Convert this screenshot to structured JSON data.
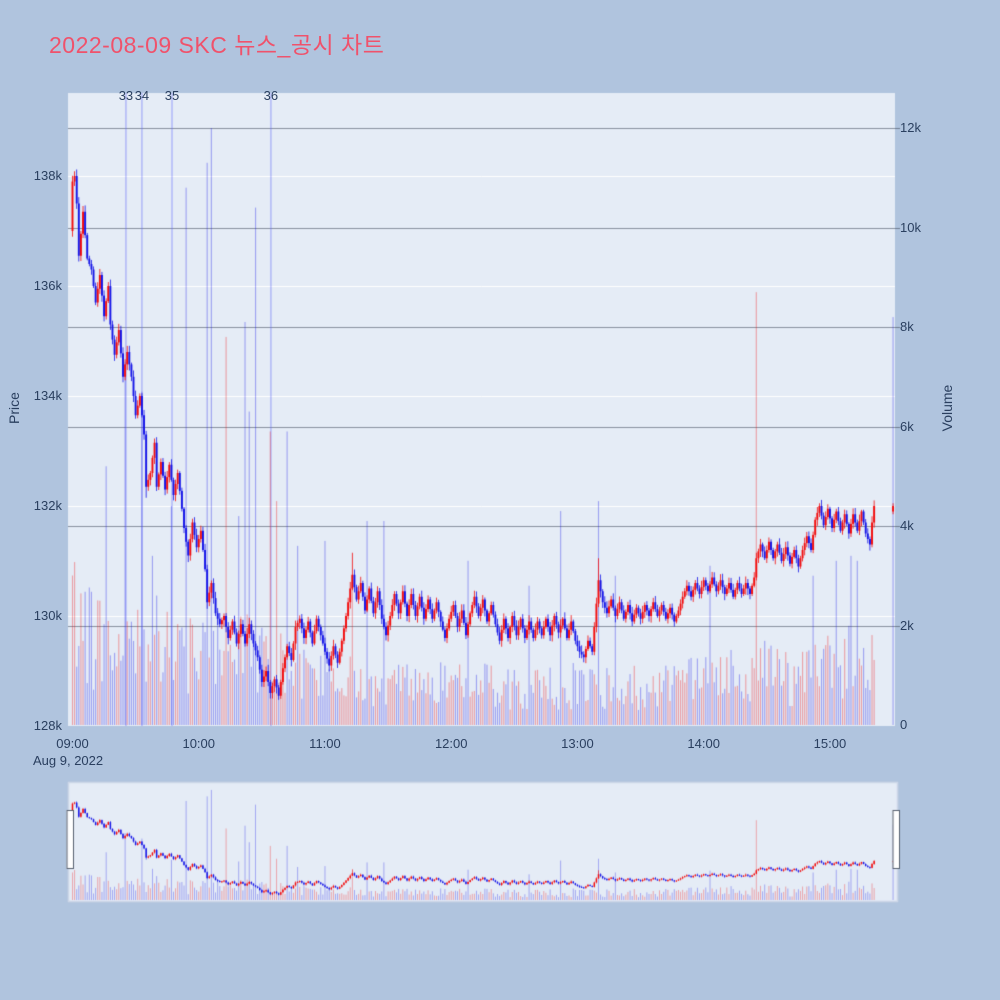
{
  "chart_data": {
    "type": "candlestick_with_volume",
    "title": "2022-08-09 SKC 뉴스_공시 차트",
    "x_axis": {
      "tick_labels": [
        "09:00",
        "10:00",
        "11:00",
        "12:00",
        "13:00",
        "14:00",
        "15:00"
      ],
      "date_label": "Aug 9, 2022",
      "session_start": "09:00",
      "session_end": "15:30"
    },
    "price_axis": {
      "title": "Price",
      "tick_labels": [
        "138k",
        "136k",
        "134k",
        "132k",
        "130k",
        "128k"
      ],
      "tick_values_k": [
        138,
        136,
        134,
        132,
        130,
        128
      ],
      "range_k": [
        128,
        139.5
      ],
      "gridline_values_k": [
        130,
        132,
        134,
        136,
        138
      ]
    },
    "volume_axis": {
      "title": "Volume",
      "tick_labels": [
        "12k",
        "10k",
        "8k",
        "6k",
        "4k",
        "2k",
        "0"
      ],
      "tick_values_k": [
        12,
        10,
        8,
        6,
        4,
        2,
        0
      ],
      "range_k": [
        0,
        12.7
      ],
      "gridline_values_k": [
        2,
        4,
        6,
        8,
        10,
        12
      ]
    },
    "annotations": [
      {
        "label": "33",
        "minute": 25.4
      },
      {
        "label": "34",
        "minute": 33.0
      },
      {
        "label": "35",
        "minute": 47.3
      },
      {
        "label": "36",
        "minute": 94.3
      }
    ],
    "open_k": 137.0,
    "price_keyframes": [
      [
        0,
        137.9
      ],
      [
        1,
        138.0
      ],
      [
        2,
        137.5
      ],
      [
        3,
        136.55
      ],
      [
        5,
        137.35
      ],
      [
        7,
        136.5
      ],
      [
        9,
        136.3
      ],
      [
        11,
        135.7
      ],
      [
        13,
        136.2
      ],
      [
        15,
        135.45
      ],
      [
        17,
        136.0
      ],
      [
        18,
        135.3
      ],
      [
        20,
        134.75
      ],
      [
        22,
        135.2
      ],
      [
        24,
        134.35
      ],
      [
        26,
        134.8
      ],
      [
        28,
        134.35
      ],
      [
        30,
        133.65
      ],
      [
        32,
        134.0
      ],
      [
        34,
        133.3
      ],
      [
        35,
        132.35
      ],
      [
        37,
        132.6
      ],
      [
        39,
        133.15
      ],
      [
        40,
        132.35
      ],
      [
        42,
        132.8
      ],
      [
        44,
        132.3
      ],
      [
        46,
        132.75
      ],
      [
        48,
        132.2
      ],
      [
        50,
        132.6
      ],
      [
        52,
        131.95
      ],
      [
        53,
        131.6
      ],
      [
        55,
        131.1
      ],
      [
        57,
        131.7
      ],
      [
        59,
        131.25
      ],
      [
        61,
        131.55
      ],
      [
        63,
        130.85
      ],
      [
        64,
        130.25
      ],
      [
        66,
        130.6
      ],
      [
        68,
        130.05
      ],
      [
        70,
        129.85
      ],
      [
        72,
        130.0
      ],
      [
        74,
        129.6
      ],
      [
        76,
        129.9
      ],
      [
        78,
        129.5
      ],
      [
        80,
        129.85
      ],
      [
        82,
        129.5
      ],
      [
        84,
        129.85
      ],
      [
        86,
        129.5
      ],
      [
        88,
        129.25
      ],
      [
        90,
        128.8
      ],
      [
        92,
        129.0
      ],
      [
        94,
        128.6
      ],
      [
        96,
        128.85
      ],
      [
        98,
        128.55
      ],
      [
        100,
        129.05
      ],
      [
        102,
        129.45
      ],
      [
        104,
        129.2
      ],
      [
        106,
        129.8
      ],
      [
        108,
        129.95
      ],
      [
        110,
        129.6
      ],
      [
        112,
        129.9
      ],
      [
        114,
        129.5
      ],
      [
        116,
        129.95
      ],
      [
        118,
        129.65
      ],
      [
        120,
        129.35
      ],
      [
        122,
        129.1
      ],
      [
        124,
        129.45
      ],
      [
        126,
        129.15
      ],
      [
        128,
        129.55
      ],
      [
        130,
        130.0
      ],
      [
        132,
        130.5
      ],
      [
        133,
        130.75
      ],
      [
        135,
        130.3
      ],
      [
        137,
        130.6
      ],
      [
        139,
        130.1
      ],
      [
        141,
        130.5
      ],
      [
        143,
        130.05
      ],
      [
        145,
        130.45
      ],
      [
        147,
        129.95
      ],
      [
        149,
        129.65
      ],
      [
        151,
        130.0
      ],
      [
        153,
        130.4
      ],
      [
        155,
        130.05
      ],
      [
        157,
        130.45
      ],
      [
        159,
        130.0
      ],
      [
        161,
        130.4
      ],
      [
        163,
        130.0
      ],
      [
        165,
        130.35
      ],
      [
        167,
        129.95
      ],
      [
        169,
        130.3
      ],
      [
        171,
        129.95
      ],
      [
        173,
        130.25
      ],
      [
        175,
        129.9
      ],
      [
        177,
        129.6
      ],
      [
        179,
        129.95
      ],
      [
        181,
        130.2
      ],
      [
        183,
        129.8
      ],
      [
        185,
        130.1
      ],
      [
        187,
        129.65
      ],
      [
        189,
        130.05
      ],
      [
        191,
        130.35
      ],
      [
        193,
        130.0
      ],
      [
        195,
        130.3
      ],
      [
        197,
        129.9
      ],
      [
        199,
        130.2
      ],
      [
        201,
        129.85
      ],
      [
        203,
        129.55
      ],
      [
        205,
        129.95
      ],
      [
        207,
        129.6
      ],
      [
        209,
        130.0
      ],
      [
        211,
        129.65
      ],
      [
        213,
        129.95
      ],
      [
        215,
        129.6
      ],
      [
        217,
        129.9
      ],
      [
        219,
        129.6
      ],
      [
        221,
        129.9
      ],
      [
        223,
        129.65
      ],
      [
        225,
        129.95
      ],
      [
        227,
        129.65
      ],
      [
        229,
        130.0
      ],
      [
        231,
        129.7
      ],
      [
        233,
        129.95
      ],
      [
        235,
        129.6
      ],
      [
        237,
        129.9
      ],
      [
        239,
        129.55
      ],
      [
        241,
        129.35
      ],
      [
        243,
        129.25
      ],
      [
        245,
        129.55
      ],
      [
        247,
        129.35
      ],
      [
        248,
        129.8
      ],
      [
        250,
        130.65
      ],
      [
        252,
        130.25
      ],
      [
        254,
        130.05
      ],
      [
        256,
        130.3
      ],
      [
        258,
        130.0
      ],
      [
        260,
        130.25
      ],
      [
        262,
        129.95
      ],
      [
        264,
        130.2
      ],
      [
        266,
        129.9
      ],
      [
        268,
        130.15
      ],
      [
        270,
        129.95
      ],
      [
        272,
        130.2
      ],
      [
        274,
        130.0
      ],
      [
        276,
        130.25
      ],
      [
        278,
        130.0
      ],
      [
        280,
        130.2
      ],
      [
        282,
        129.95
      ],
      [
        284,
        130.15
      ],
      [
        286,
        129.9
      ],
      [
        288,
        130.1
      ],
      [
        290,
        130.35
      ],
      [
        292,
        130.55
      ],
      [
        294,
        130.35
      ],
      [
        296,
        130.6
      ],
      [
        298,
        130.4
      ],
      [
        300,
        130.65
      ],
      [
        302,
        130.45
      ],
      [
        304,
        130.7
      ],
      [
        306,
        130.45
      ],
      [
        308,
        130.65
      ],
      [
        310,
        130.4
      ],
      [
        312,
        130.6
      ],
      [
        314,
        130.35
      ],
      [
        316,
        130.6
      ],
      [
        318,
        130.4
      ],
      [
        320,
        130.6
      ],
      [
        322,
        130.4
      ],
      [
        324,
        130.7
      ],
      [
        325,
        131.05
      ],
      [
        327,
        131.3
      ],
      [
        329,
        131.05
      ],
      [
        331,
        131.35
      ],
      [
        333,
        131.05
      ],
      [
        335,
        131.3
      ],
      [
        337,
        131.0
      ],
      [
        339,
        131.25
      ],
      [
        341,
        130.95
      ],
      [
        343,
        131.2
      ],
      [
        345,
        130.9
      ],
      [
        347,
        131.2
      ],
      [
        349,
        131.45
      ],
      [
        351,
        131.2
      ],
      [
        353,
        131.75
      ],
      [
        355,
        132.0
      ],
      [
        357,
        131.65
      ],
      [
        359,
        131.95
      ],
      [
        361,
        131.6
      ],
      [
        363,
        131.9
      ],
      [
        365,
        131.55
      ],
      [
        367,
        131.85
      ],
      [
        369,
        131.5
      ],
      [
        371,
        131.85
      ],
      [
        373,
        131.55
      ],
      [
        375,
        131.9
      ],
      [
        377,
        131.5
      ],
      [
        379,
        131.3
      ],
      [
        380,
        131.7
      ],
      [
        381,
        132.0
      ]
    ],
    "wick_highs": [
      [
        1,
        138.05
      ],
      [
        133,
        131.15
      ],
      [
        250,
        131.05
      ],
      [
        355,
        132.05
      ],
      [
        381,
        132.05
      ]
    ],
    "wick_lows": [
      [
        35,
        132.15
      ],
      [
        94,
        128.5
      ],
      [
        122,
        129.0
      ]
    ],
    "last_continuous_minute": 381,
    "final_auction": {
      "minute": 390,
      "open_k": 131.9,
      "close_k": 132.0,
      "volume_k": 8.2
    },
    "volume_profile_keyframes_k": [
      [
        0,
        2.6
      ],
      [
        5,
        2.2
      ],
      [
        10,
        1.7
      ],
      [
        20,
        1.4
      ],
      [
        35,
        1.8
      ],
      [
        50,
        1.3
      ],
      [
        65,
        1.9
      ],
      [
        75,
        1.3
      ],
      [
        90,
        1.5
      ],
      [
        105,
        1.0
      ],
      [
        120,
        0.9
      ],
      [
        140,
        0.85
      ],
      [
        160,
        0.8
      ],
      [
        180,
        0.85
      ],
      [
        210,
        0.7
      ],
      [
        240,
        0.8
      ],
      [
        270,
        0.75
      ],
      [
        300,
        0.9
      ],
      [
        325,
        1.1
      ],
      [
        345,
        0.9
      ],
      [
        360,
        1.2
      ],
      [
        375,
        1.3
      ],
      [
        381,
        1.5
      ]
    ],
    "volume_spikes": [
      [
        16,
        5.2,
        "down"
      ],
      [
        25,
        7.3,
        "down"
      ],
      [
        33,
        6.7,
        "down"
      ],
      [
        38,
        3.4,
        "down"
      ],
      [
        47,
        4.4,
        "down"
      ],
      [
        54,
        10.8,
        "down"
      ],
      [
        64,
        11.3,
        "down"
      ],
      [
        66,
        12.0,
        "down"
      ],
      [
        73,
        7.8,
        "up"
      ],
      [
        79,
        4.2,
        "down"
      ],
      [
        82,
        8.1,
        "down"
      ],
      [
        84,
        6.3,
        "down"
      ],
      [
        87,
        10.4,
        "down"
      ],
      [
        94,
        5.9,
        "up"
      ],
      [
        97,
        4.5,
        "up"
      ],
      [
        102,
        5.9,
        "down"
      ],
      [
        107,
        3.6,
        "down"
      ],
      [
        120,
        3.7,
        "down"
      ],
      [
        133,
        3.0,
        "up"
      ],
      [
        140,
        4.1,
        "down"
      ],
      [
        148,
        4.1,
        "down"
      ],
      [
        188,
        3.3,
        "down"
      ],
      [
        217,
        2.8,
        "down"
      ],
      [
        232,
        4.3,
        "down"
      ],
      [
        250,
        4.5,
        "down"
      ],
      [
        258,
        3.0,
        "down"
      ],
      [
        303,
        3.2,
        "down"
      ],
      [
        325,
        8.7,
        "up"
      ],
      [
        352,
        3.0,
        "down"
      ],
      [
        363,
        3.3,
        "down"
      ],
      [
        370,
        3.4,
        "down"
      ],
      [
        373,
        3.3,
        "down"
      ]
    ],
    "colors": {
      "paper_bg": "#B0C4DE",
      "plot_bg": "#E5ECF6",
      "up": "#F30B0B",
      "down": "#1414E8",
      "volume_alpha": 0.35,
      "price_grid": "#FFFFFF",
      "volume_grid": "rgba(60,70,85,0.55)",
      "annotation_line": "rgba(99,110,250,0.42)",
      "font": "#2a3f5f",
      "title": "#F0526B",
      "slider_border": "#cdd7e8",
      "handle_fill": "#FFFFFF",
      "handle_border": "#565f6e"
    },
    "legend": "none",
    "grid_on": true
  }
}
